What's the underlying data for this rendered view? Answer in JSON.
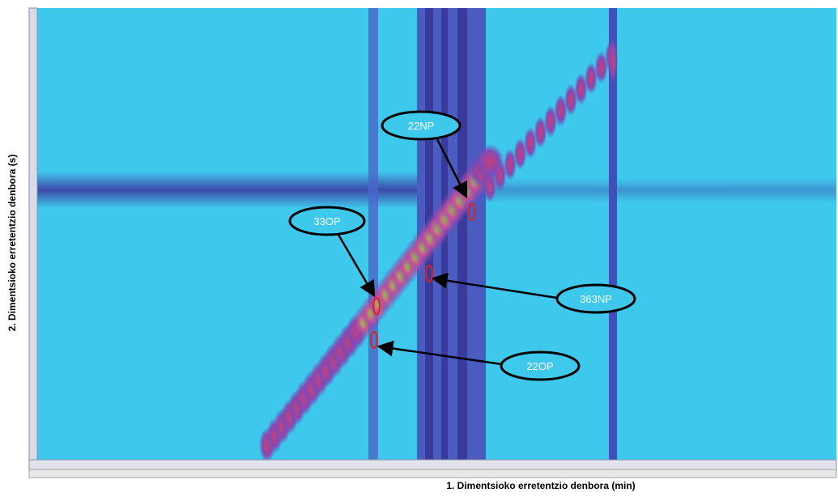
{
  "y_axis_label": "2. Dimentsioko erretentzio denbora (s)",
  "x_axis_label": "1. Dimentsioko erretentzio denbora (min)",
  "callouts": [
    {
      "label": "22NP"
    },
    {
      "label": "33OP"
    },
    {
      "label": "363NP"
    },
    {
      "label": "22OP"
    }
  ]
}
